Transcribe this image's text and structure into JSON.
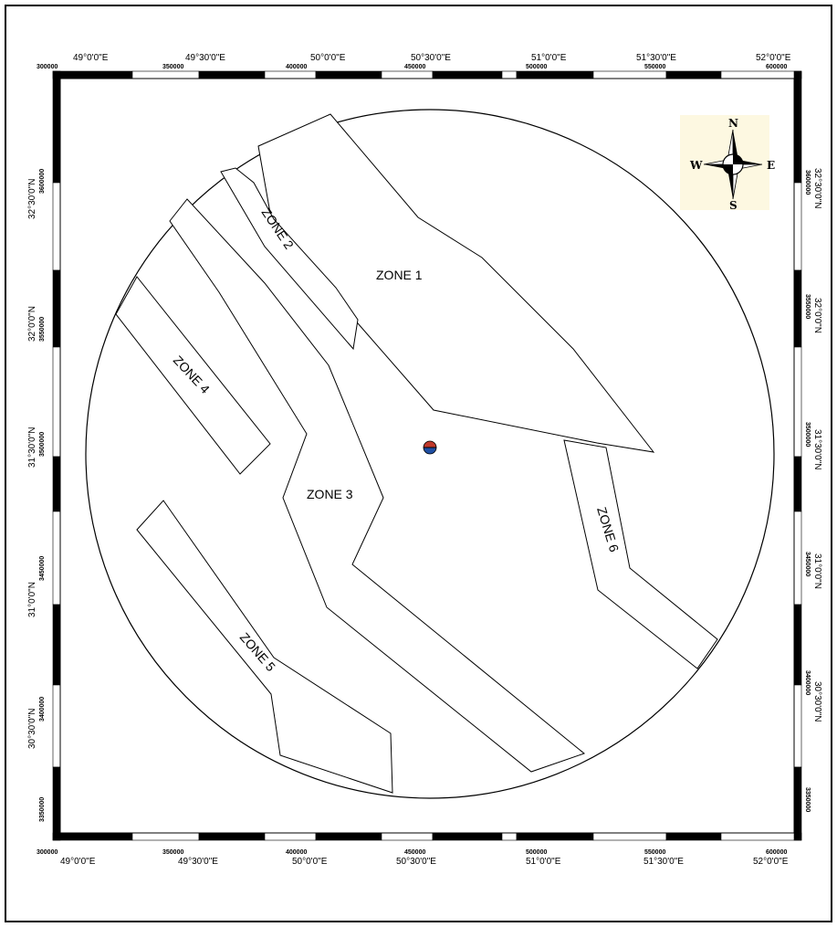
{
  "map": {
    "top_axis": {
      "deg_labels": [
        "49°0'0\"E",
        "49°30'0\"E",
        "50°0'0\"E",
        "50°30'0\"E",
        "51°0'0\"E",
        "51°30'0\"E",
        "52°0'0\"E"
      ],
      "utm_labels": [
        "300000",
        "350000",
        "400000",
        "450000",
        "500000",
        "550000",
        "600000"
      ]
    },
    "bottom_axis": {
      "deg_labels": [
        "49°0'0\"E",
        "49°30'0\"E",
        "50°0'0\"E",
        "50°30'0\"E",
        "51°0'0\"E",
        "51°30'0\"E",
        "52°0'0\"E"
      ],
      "utm_labels": [
        "300000",
        "350000",
        "400000",
        "450000",
        "500000",
        "550000",
        "600000"
      ]
    },
    "left_axis": {
      "deg_labels": [
        "32°30'0\"N",
        "32°0'0\"N",
        "31°30'0\"N",
        "31°0'0\"N",
        "30°30'0\"N"
      ],
      "utm_labels": [
        "3600000",
        "3550000",
        "3500000",
        "3450000",
        "3400000",
        "3350000"
      ]
    },
    "right_axis": {
      "deg_labels": [
        "32°30'0\"N",
        "32°0'0\"N",
        "31°30'0\"N",
        "31°0'0\"N",
        "30°30'0\"N"
      ],
      "utm_labels": [
        "3600000",
        "3550000",
        "3500000",
        "3450000",
        "3400000",
        "3350000"
      ]
    },
    "zones": {
      "zone1": "ZONE 1",
      "zone2": "ZONE 2",
      "zone3": "ZONE 3",
      "zone4": "ZONE 4",
      "zone5": "ZONE 5",
      "zone6": "ZONE 6"
    },
    "compass": {
      "north": "N",
      "south": "S",
      "east": "E",
      "west": "W",
      "background_color": "#fdf8e1"
    },
    "center_marker": {
      "icon": "station-marker-icon",
      "top_color": "#c0392b",
      "bottom_color": "#1f4fa3"
    },
    "frame_color": "#000000"
  }
}
